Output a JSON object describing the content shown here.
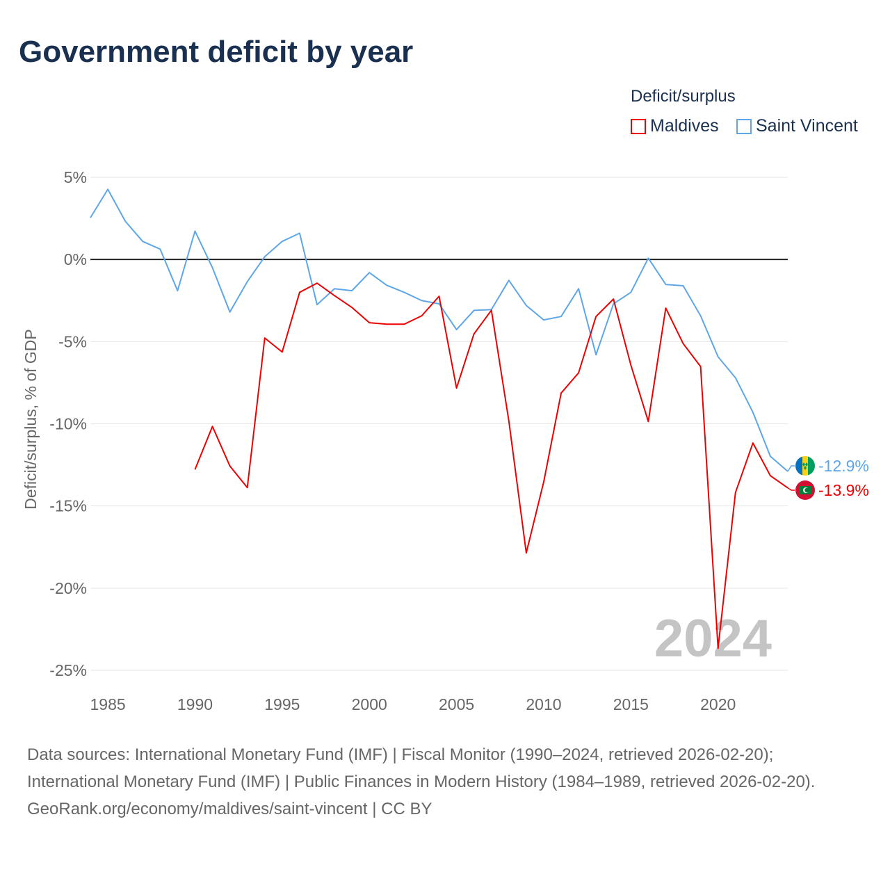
{
  "title": "Government deficit by year",
  "legend": {
    "title": "Deficit/surplus",
    "items": [
      {
        "name": "Maldives",
        "color": "#ee0000"
      },
      {
        "name": "Saint Vincent",
        "color": "#5ea6e8"
      }
    ]
  },
  "year_watermark": "2024",
  "sources": {
    "line1": "Data sources: International Monetary Fund (IMF) | Fiscal Monitor (1990–2024, retrieved 2026-02-20); International Monetary Fund (IMF) | Public Finances in Modern History (1984–1989, retrieved 2026-02-20).",
    "line2": "GeoRank.org/economy/maldives/saint-vincent | CC BY"
  },
  "chart_data": {
    "type": "line",
    "title": "Government deficit by year",
    "ylabel": "Deficit/surplus, % of GDP",
    "xlabel": "",
    "xlim": [
      1984,
      2024
    ],
    "ylim": [
      -25,
      5
    ],
    "x_ticks": [
      1985,
      1990,
      1995,
      2000,
      2005,
      2010,
      2015,
      2020
    ],
    "y_ticks": [
      {
        "v": 5,
        "label": "5%"
      },
      {
        "v": 0,
        "label": "0%"
      },
      {
        "v": -5,
        "label": "-5%"
      },
      {
        "v": -10,
        "label": "-10%"
      },
      {
        "v": -15,
        "label": "-15%"
      },
      {
        "v": -20,
        "label": "-20%"
      },
      {
        "v": -25,
        "label": "-25%"
      }
    ],
    "series": [
      {
        "name": "Saint Vincent",
        "color": "#5ea6e8",
        "end_label": "-12.9%",
        "x_start": 1984,
        "values": [
          2.54,
          4.27,
          2.33,
          1.1,
          0.63,
          -1.9,
          1.73,
          -0.5,
          -3.2,
          -1.35,
          0.17,
          1.1,
          1.6,
          -2.75,
          -1.78,
          -1.9,
          -0.8,
          -1.57,
          -2.0,
          -2.5,
          -2.7,
          -4.27,
          -3.1,
          -3.05,
          -1.27,
          -2.8,
          -3.68,
          -3.47,
          -1.78,
          -5.8,
          -2.7,
          -2.0,
          0.08,
          -1.52,
          -1.6,
          -3.43,
          -5.92,
          -7.2,
          -9.3,
          -11.98,
          -12.9
        ]
      },
      {
        "name": "Maldives",
        "color": "#ee0000",
        "end_label": "-13.9%",
        "x_start": 1990,
        "values": [
          -12.78,
          -10.16,
          -12.57,
          -13.88,
          -4.78,
          -5.63,
          -2.0,
          -1.44,
          -2.2,
          -2.92,
          -3.85,
          -3.94,
          -3.94,
          -3.43,
          -2.24,
          -7.83,
          -4.53,
          -3.09,
          -9.82,
          -17.86,
          -13.54,
          -8.13,
          -6.9,
          -3.47,
          -2.41,
          -6.43,
          -9.86,
          -2.96,
          -5.12,
          -6.52,
          -23.66,
          -14.18,
          -11.17,
          -13.16,
          -13.9
        ]
      }
    ]
  }
}
